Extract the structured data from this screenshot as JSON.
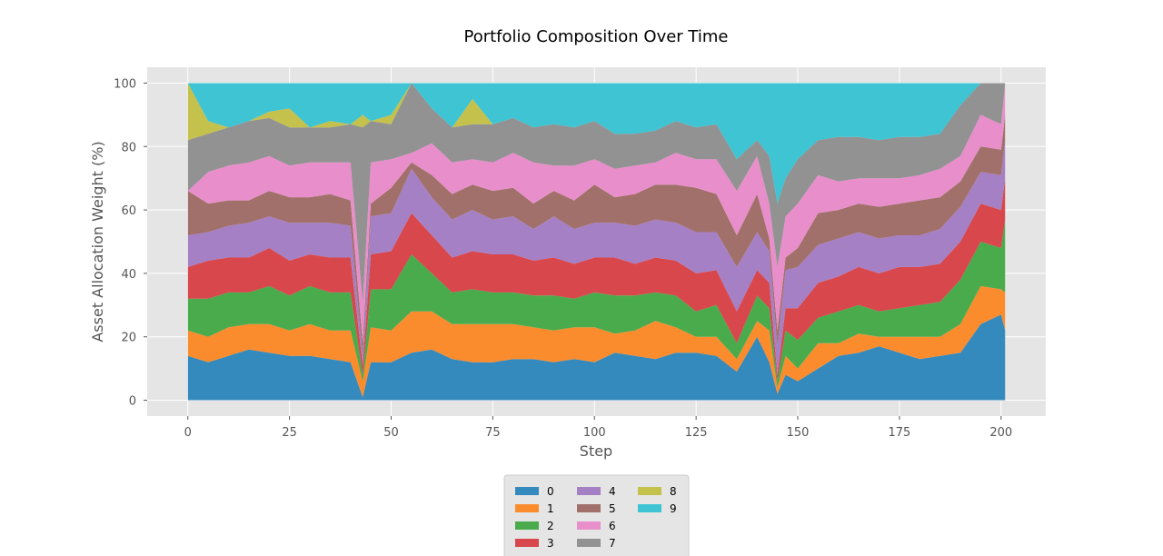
{
  "chart_data": {
    "type": "area",
    "stacked": true,
    "title": "Portfolio Composition Over Time",
    "xlabel": "Step",
    "ylabel": "Asset Allocation Weight (%)",
    "xlim": [
      -10,
      211
    ],
    "ylim": [
      -5,
      105
    ],
    "x_ticks": [
      0,
      25,
      50,
      75,
      100,
      125,
      150,
      175,
      200
    ],
    "y_ticks": [
      0,
      20,
      40,
      60,
      80,
      100
    ],
    "grid": true,
    "legend_position": "bottom-center",
    "legend_columns": 3,
    "x_sampled": [
      0,
      5,
      10,
      15,
      20,
      25,
      30,
      35,
      40,
      43,
      45,
      50,
      55,
      60,
      65,
      70,
      75,
      80,
      85,
      90,
      95,
      100,
      105,
      110,
      115,
      120,
      125,
      130,
      135,
      140,
      143,
      145,
      147,
      150,
      155,
      160,
      165,
      170,
      175,
      180,
      185,
      190,
      195,
      200,
      201
    ],
    "series": [
      {
        "name": "0",
        "color": "#348abd",
        "values": [
          14,
          12,
          14,
          16,
          15,
          14,
          14,
          13,
          12,
          1,
          12,
          12,
          15,
          16,
          13,
          12,
          12,
          13,
          13,
          12,
          13,
          12,
          15,
          14,
          13,
          15,
          15,
          14,
          9,
          20,
          12,
          2,
          8,
          6,
          10,
          14,
          15,
          17,
          15,
          13,
          14,
          15,
          24,
          27,
          22
        ]
      },
      {
        "name": "1",
        "color": "#fb8c2e",
        "values": [
          8,
          8,
          9,
          8,
          9,
          8,
          10,
          9,
          10,
          5,
          11,
          10,
          13,
          12,
          11,
          12,
          12,
          11,
          10,
          10,
          10,
          11,
          6,
          8,
          12,
          8,
          5,
          6,
          4,
          5,
          10,
          2,
          6,
          4,
          8,
          4,
          6,
          3,
          5,
          7,
          6,
          9,
          12,
          8,
          12
        ]
      },
      {
        "name": "2",
        "color": "#4aab4d",
        "values": [
          10,
          12,
          11,
          10,
          12,
          11,
          12,
          12,
          12,
          2,
          12,
          13,
          18,
          12,
          10,
          11,
          10,
          10,
          10,
          11,
          9,
          11,
          12,
          11,
          9,
          10,
          8,
          10,
          5,
          8,
          7,
          2,
          8,
          9,
          8,
          10,
          9,
          8,
          9,
          10,
          11,
          14,
          14,
          13,
          23
        ]
      },
      {
        "name": "3",
        "color": "#d8474c",
        "values": [
          10,
          12,
          11,
          11,
          12,
          11,
          10,
          11,
          11,
          3,
          11,
          12,
          13,
          12,
          11,
          12,
          12,
          12,
          11,
          12,
          11,
          11,
          12,
          10,
          11,
          11,
          12,
          11,
          10,
          8,
          8,
          2,
          7,
          10,
          11,
          11,
          12,
          12,
          13,
          12,
          12,
          12,
          12,
          12,
          13
        ]
      },
      {
        "name": "4",
        "color": "#a680c5",
        "values": [
          10,
          9,
          10,
          11,
          10,
          12,
          10,
          11,
          10,
          3,
          12,
          12,
          14,
          12,
          12,
          13,
          11,
          12,
          10,
          13,
          11,
          11,
          11,
          12,
          12,
          12,
          13,
          12,
          14,
          12,
          10,
          9,
          12,
          13,
          12,
          12,
          11,
          11,
          10,
          10,
          11,
          11,
          10,
          11,
          12
        ]
      },
      {
        "name": "5",
        "color": "#a2706a",
        "values": [
          14,
          9,
          8,
          7,
          8,
          8,
          8,
          9,
          8,
          4,
          4,
          8,
          2,
          7,
          8,
          8,
          9,
          9,
          8,
          8,
          9,
          12,
          8,
          10,
          11,
          12,
          14,
          12,
          10,
          12,
          4,
          5,
          4,
          6,
          10,
          9,
          9,
          10,
          10,
          11,
          10,
          8,
          8,
          8,
          8
        ]
      },
      {
        "name": "6",
        "color": "#e88fcb",
        "values": [
          0,
          10,
          11,
          12,
          11,
          10,
          11,
          10,
          12,
          13,
          13,
          9,
          3,
          10,
          10,
          8,
          9,
          11,
          13,
          8,
          11,
          8,
          9,
          9,
          7,
          10,
          9,
          11,
          14,
          12,
          11,
          20,
          13,
          14,
          12,
          9,
          8,
          9,
          8,
          8,
          9,
          8,
          10,
          8,
          10
        ]
      },
      {
        "name": "7",
        "color": "#929292",
        "values": [
          16,
          12,
          12,
          13,
          12,
          12,
          11,
          11,
          12,
          55,
          13,
          11,
          22,
          11,
          11,
          11,
          12,
          11,
          11,
          13,
          12,
          12,
          11,
          10,
          10,
          10,
          10,
          11,
          10,
          5,
          15,
          20,
          12,
          14,
          11,
          14,
          13,
          12,
          13,
          12,
          11,
          16,
          10,
          13,
          0
        ]
      },
      {
        "name": "8",
        "color": "#c5c14d",
        "values": [
          18,
          4,
          0,
          0,
          2,
          6,
          0,
          2,
          0,
          4,
          0,
          3,
          0,
          0,
          0,
          8,
          0,
          0,
          0,
          0,
          0,
          0,
          0,
          0,
          0,
          0,
          0,
          0,
          0,
          0,
          0,
          0,
          0,
          0,
          0,
          0,
          0,
          0,
          0,
          0,
          0,
          0,
          0,
          0,
          0
        ]
      },
      {
        "name": "9",
        "color": "#3fc4d3",
        "values": [
          0,
          12,
          14,
          12,
          9,
          8,
          14,
          12,
          13,
          10,
          12,
          10,
          0,
          8,
          14,
          5,
          13,
          11,
          14,
          13,
          14,
          12,
          16,
          16,
          15,
          12,
          14,
          13,
          24,
          18,
          23,
          38,
          30,
          24,
          18,
          17,
          17,
          18,
          17,
          17,
          16,
          7,
          0,
          0,
          0
        ]
      }
    ]
  }
}
